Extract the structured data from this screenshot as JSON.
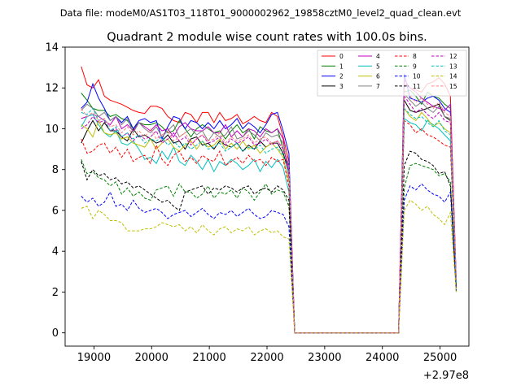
{
  "chart_data": {
    "type": "line",
    "suptitle": "Data file: modeM0/AS1T03_118T01_9000002962_19858cztM0_level2_quad_clean.evt",
    "title": "Quadrant 2 module wise count rates with 100.0s bins.",
    "xlabel": "",
    "ylabel": "",
    "x_offset_label": "+2.97e8",
    "xlim": [
      18500,
      25500
    ],
    "ylim": [
      -0.65,
      14
    ],
    "x_ticks": [
      19000,
      20000,
      21000,
      22000,
      23000,
      24000,
      25000
    ],
    "x_tick_labels": [
      "19000",
      "20000",
      "21000",
      "22000",
      "23000",
      "24000",
      "25000"
    ],
    "y_ticks": [
      0,
      2,
      4,
      6,
      8,
      10,
      12,
      14
    ],
    "y_tick_labels": [
      "0",
      "2",
      "4",
      "6",
      "8",
      "10",
      "12",
      "14"
    ],
    "legend_position": "top-right",
    "legend_columns": 4,
    "x_start": 18780,
    "x_step": 100,
    "n_points": 66,
    "gap_start": 22380,
    "gap_end": 24480,
    "series": [
      {
        "name": "0",
        "color": "#ff0000",
        "style": "solid",
        "seg1": [
          13.05,
          12.15,
          12.0,
          12.4,
          11.6,
          11.4,
          11.3,
          11.2,
          11.05,
          10.9,
          10.8,
          10.75,
          11.1,
          11.1,
          11.0,
          10.6,
          10.4,
          10.3,
          10.8,
          10.7,
          10.3,
          10.8,
          10.8,
          10.3,
          10.8,
          10.4,
          10.5,
          10.7,
          10.25,
          10.4,
          10.6,
          10.4,
          10.3,
          10.8,
          10.6,
          9.6,
          8.4
        ],
        "seg2": [
          12.2,
          12.0,
          11.9,
          11.8,
          12.2,
          12.3,
          12.5,
          12.2,
          11.6
        ],
        "end": 2.5
      },
      {
        "name": "1",
        "color": "#008000",
        "style": "solid",
        "seg1": [
          11.75,
          11.4,
          11.0,
          10.9,
          10.9,
          10.6,
          10.7,
          10.5,
          10.4,
          10.0,
          10.3,
          10.2,
          10.2,
          10.3,
          10.1,
          9.8,
          9.9,
          10.4,
          10.0,
          9.6,
          10.0,
          10.2,
          10.0,
          9.8,
          9.9,
          9.5,
          9.9,
          10.2,
          9.8,
          10.0,
          9.5,
          10.1,
          9.9,
          9.8,
          10.0,
          9.0,
          8.2
        ],
        "seg2": [
          11.8,
          11.9,
          11.6,
          11.2,
          11.8,
          11.6,
          11.5,
          11.2,
          11.0
        ],
        "end": 2.4
      },
      {
        "name": "2",
        "color": "#0000ff",
        "style": "solid",
        "seg1": [
          11.0,
          11.3,
          12.2,
          11.5,
          11.0,
          10.4,
          10.6,
          10.3,
          10.6,
          10.0,
          10.4,
          10.5,
          10.3,
          10.4,
          9.5,
          10.1,
          10.6,
          10.5,
          10.0,
          10.4,
          10.3,
          10.0,
          10.3,
          10.0,
          10.4,
          10.0,
          10.2,
          10.5,
          10.0,
          10.3,
          10.1,
          9.8,
          10.2,
          10.7,
          10.8,
          9.9,
          8.8
        ],
        "seg2": [
          12.7,
          11.5,
          11.4,
          11.3,
          11.5,
          11.6,
          11.4,
          11.0,
          10.8
        ],
        "end": 2.4
      },
      {
        "name": "3",
        "color": "#000000",
        "style": "solid",
        "seg1": [
          9.3,
          9.9,
          10.4,
          9.9,
          10.3,
          9.9,
          9.9,
          9.6,
          9.4,
          10.0,
          9.6,
          9.7,
          9.5,
          9.3,
          9.4,
          9.7,
          9.3,
          9.4,
          9.0,
          9.5,
          9.6,
          9.2,
          9.3,
          9.0,
          9.4,
          9.2,
          9.1,
          9.3,
          8.9,
          9.2,
          9.0,
          9.4,
          9.1,
          9.3,
          9.3,
          8.8,
          7.9
        ],
        "seg2": [
          11.4,
          10.9,
          10.8,
          10.9,
          11.0,
          11.1,
          11.2,
          10.6,
          10.4
        ],
        "end": 2.3
      },
      {
        "name": "4",
        "color": "#bf00bf",
        "style": "solid",
        "seg1": [
          10.5,
          10.6,
          10.7,
          10.6,
          10.4,
          10.2,
          10.6,
          10.0,
          10.2,
          9.9,
          10.3,
          10.1,
          9.9,
          10.2,
          9.9,
          10.0,
          9.6,
          10.1,
          10.3,
          10.0,
          9.9,
          9.9,
          10.1,
          9.8,
          9.8,
          10.2,
          9.6,
          9.9,
          9.6,
          10.0,
          9.9,
          9.6,
          10.0,
          9.8,
          10.0,
          9.5,
          7.6
        ],
        "seg2": [
          12.4,
          12.0,
          11.8,
          11.5,
          11.3,
          11.1,
          11.0,
          10.9,
          11.2
        ],
        "end": 2.7
      },
      {
        "name": "5",
        "color": "#00bfbf",
        "style": "solid",
        "seg1": [
          10.1,
          10.6,
          10.7,
          10.2,
          9.8,
          9.6,
          9.9,
          9.3,
          9.2,
          9.4,
          9.0,
          8.5,
          8.6,
          8.3,
          8.9,
          8.5,
          9.1,
          8.4,
          8.2,
          8.7,
          8.4,
          8.0,
          8.5,
          7.9,
          8.4,
          8.2,
          8.5,
          8.3,
          8.0,
          8.2,
          8.5,
          7.9,
          8.4,
          8.1,
          8.5,
          8.1,
          6.9
        ],
        "seg2": [
          10.5,
          10.3,
          10.2,
          9.9,
          10.4,
          10.2,
          10.0,
          9.7,
          9.4
        ],
        "end": 2.2
      },
      {
        "name": "6",
        "color": "#bfbf00",
        "style": "solid",
        "seg1": [
          10.2,
          10.0,
          9.6,
          10.4,
          9.8,
          9.7,
          9.8,
          9.5,
          9.6,
          9.3,
          9.2,
          9.1,
          9.5,
          9.0,
          9.3,
          9.5,
          9.1,
          8.9,
          9.2,
          9.4,
          9.0,
          9.4,
          9.1,
          9.2,
          9.5,
          9.0,
          9.3,
          9.0,
          9.4,
          9.0,
          9.2,
          8.8,
          9.1,
          9.3,
          9.0,
          8.6,
          7.4
        ],
        "seg2": [
          11.0,
          10.6,
          10.4,
          10.8,
          10.5,
          10.1,
          10.3,
          10.0,
          9.8
        ],
        "end": 2.3
      },
      {
        "name": "7",
        "color": "#808080",
        "style": "solid",
        "seg1": [
          10.9,
          11.2,
          11.0,
          10.6,
          10.8,
          10.4,
          10.6,
          10.2,
          10.5,
          9.8,
          10.3,
          10.0,
          9.8,
          10.1,
          9.6,
          9.9,
          10.2,
          9.6,
          9.8,
          10.0,
          9.7,
          9.9,
          9.4,
          9.8,
          9.6,
          9.7,
          10.1,
          9.5,
          9.6,
          9.9,
          9.7,
          9.4,
          9.8,
          9.6,
          9.7,
          9.3,
          8.0
        ],
        "seg2": [
          11.7,
          11.4,
          11.1,
          11.3,
          11.0,
          10.8,
          11.1,
          10.6,
          10.5
        ],
        "end": 2.6
      },
      {
        "name": "8",
        "color": "#ff0000",
        "style": "dashed",
        "seg1": [
          9.5,
          8.8,
          8.9,
          9.2,
          9.3,
          8.8,
          9.1,
          8.6,
          9.0,
          8.4,
          8.6,
          8.7,
          8.3,
          9.2,
          8.5,
          8.2,
          8.7,
          8.9,
          8.4,
          8.6,
          8.3,
          8.7,
          8.5,
          8.4,
          8.9,
          8.2,
          8.4,
          8.6,
          8.3,
          8.7,
          8.4,
          8.5,
          8.2,
          8.6,
          8.4,
          8.5,
          7.2
        ],
        "seg2": [
          10.4,
          10.2,
          9.8,
          10.0,
          9.7,
          9.6,
          9.4,
          9.2,
          9.1
        ],
        "end": 2.2
      },
      {
        "name": "9",
        "color": "#008000",
        "style": "dashed",
        "seg1": [
          8.5,
          7.8,
          7.9,
          7.6,
          7.5,
          7.2,
          7.4,
          6.8,
          7.1,
          6.7,
          6.9,
          6.6,
          6.5,
          7.0,
          7.1,
          7.2,
          6.7,
          7.3,
          6.9,
          6.9,
          6.6,
          6.8,
          7.2,
          6.6,
          6.9,
          6.8,
          7.0,
          6.6,
          7.1,
          6.9,
          6.5,
          6.9,
          7.3,
          6.8,
          7.0,
          6.9,
          6.2
        ],
        "seg2": [
          7.1,
          8.2,
          8.3,
          8.2,
          8.1,
          8.0,
          7.7,
          7.8,
          7.4
        ],
        "end": 2.0
      },
      {
        "name": "10",
        "color": "#0000ff",
        "style": "dashed",
        "seg1": [
          6.7,
          6.4,
          6.6,
          6.2,
          6.4,
          6.9,
          6.2,
          6.3,
          6.0,
          6.5,
          6.1,
          5.9,
          6.0,
          6.1,
          5.9,
          5.6,
          5.8,
          5.9,
          6.0,
          5.7,
          5.9,
          6.1,
          5.8,
          5.6,
          5.9,
          5.8,
          6.0,
          5.7,
          5.9,
          6.1,
          5.8,
          5.6,
          5.7,
          6.0,
          5.9,
          5.8,
          5.2
        ],
        "seg2": [
          6.5,
          7.2,
          7.0,
          7.3,
          7.0,
          6.8,
          6.7,
          6.4,
          6.9
        ],
        "end": 2.1
      },
      {
        "name": "11",
        "color": "#000000",
        "style": "dashed",
        "seg1": [
          8.4,
          7.5,
          8.0,
          7.7,
          7.8,
          7.5,
          7.6,
          7.3,
          7.4,
          7.1,
          7.2,
          7.0,
          6.8,
          6.6,
          6.4,
          6.5,
          6.2,
          6.0,
          6.9,
          7.0,
          7.1,
          7.2,
          6.8,
          7.1,
          7.0,
          7.2,
          7.1,
          6.9,
          7.1,
          7.2,
          6.8,
          7.0,
          7.1,
          6.9,
          7.2,
          7.0,
          6.5
        ],
        "seg2": [
          8.2,
          8.9,
          8.8,
          8.5,
          8.4,
          8.2,
          7.8,
          7.9,
          7.2
        ],
        "end": 2.2
      },
      {
        "name": "12",
        "color": "#bf00bf",
        "style": "dashed",
        "seg1": [
          10.0,
          10.2,
          10.6,
          10.3,
          10.4,
          9.9,
          10.0,
          9.6,
          9.8,
          9.4,
          9.7,
          9.5,
          9.6,
          9.9,
          9.3,
          9.5,
          9.8,
          9.4,
          9.6,
          9.2,
          9.5,
          9.7,
          9.3,
          9.4,
          9.6,
          9.2,
          9.5,
          9.3,
          9.4,
          9.6,
          9.2,
          9.3,
          9.5,
          9.2,
          9.4,
          9.0,
          8.1
        ],
        "seg2": [
          11.6,
          11.2,
          10.8,
          11.0,
          10.7,
          10.5,
          10.8,
          10.4,
          10.3
        ],
        "end": 2.5
      },
      {
        "name": "13",
        "color": "#00bfbf",
        "style": "dashed",
        "seg1": [
          10.8,
          10.7,
          11.0,
          10.4,
          10.5,
          9.9,
          10.1,
          9.6,
          9.8,
          9.5,
          9.7,
          9.3,
          9.5,
          9.4,
          9.6,
          9.2,
          9.4,
          9.1,
          9.3,
          9.0,
          9.2,
          9.4,
          9.0,
          9.1,
          9.3,
          8.9,
          9.1,
          9.3,
          8.9,
          9.1,
          9.0,
          9.2,
          8.8,
          9.0,
          9.1,
          8.7,
          7.8
        ],
        "seg2": [
          11.0,
          10.7,
          10.5,
          10.6,
          10.3,
          10.1,
          10.4,
          9.9,
          9.7
        ],
        "end": 2.4
      },
      {
        "name": "14",
        "color": "#bfbf00",
        "style": "dashed",
        "seg1": [
          6.1,
          6.2,
          5.6,
          6.0,
          5.8,
          5.5,
          5.5,
          5.4,
          5.0,
          5.0,
          5.0,
          5.1,
          5.1,
          5.2,
          5.4,
          5.3,
          5.2,
          5.3,
          5.0,
          5.2,
          4.9,
          5.3,
          5.0,
          4.8,
          5.1,
          5.2,
          4.9,
          5.1,
          5.0,
          5.2,
          4.8,
          5.0,
          5.1,
          4.9,
          5.0,
          4.7,
          4.6
        ],
        "seg2": [
          6.0,
          6.5,
          6.3,
          6.0,
          6.2,
          5.8,
          5.6,
          5.3,
          5.9
        ],
        "end": 2.0
      },
      {
        "name": "15",
        "color": "#ff8080",
        "style": "dashed",
        "seg1": [
          11.0,
          10.6,
          10.8,
          10.4,
          10.5,
          10.1,
          10.2,
          9.8,
          10.1,
          9.7,
          9.9,
          9.6,
          10.0,
          9.5,
          9.7,
          9.9,
          9.4,
          9.6,
          9.8,
          9.3,
          9.5,
          9.7,
          9.4,
          9.5,
          9.8,
          9.3,
          9.6,
          9.4,
          9.5,
          9.7,
          9.3,
          9.5,
          9.6,
          9.3,
          9.4,
          9.1,
          8.3
        ],
        "seg2": [
          11.9,
          11.6,
          11.3,
          11.5,
          11.2,
          11.0,
          11.3,
          10.8,
          10.6
        ],
        "end": 2.6
      }
    ]
  }
}
